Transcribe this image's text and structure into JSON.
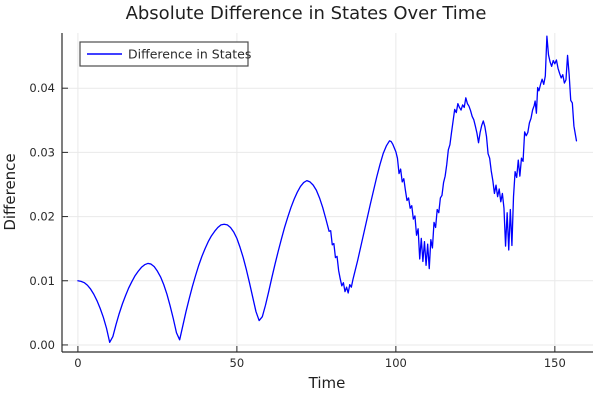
{
  "colors": {
    "line": "#0000ff",
    "axis": "#2a2a2a",
    "grid": "#e9e9e9",
    "title_text": "#1f1f1f",
    "tick_text": "#2a2a2a",
    "legend_border": "#4d4d4d",
    "legend_bg": "#ffffff",
    "background": "#ffffff"
  },
  "chart_data": {
    "type": "line",
    "title": "Absolute Difference in States Over Time",
    "xlabel": "Time",
    "ylabel": "Difference",
    "xlim": [
      -5,
      162
    ],
    "ylim": [
      -0.0011,
      0.0486
    ],
    "x_ticks": [
      0,
      50,
      100,
      150
    ],
    "x_tick_labels": [
      "0",
      "50",
      "100",
      "150"
    ],
    "y_ticks": [
      0.0,
      0.01,
      0.02,
      0.03,
      0.04
    ],
    "y_tick_labels": [
      "0.00",
      "0.01",
      "0.02",
      "0.03",
      "0.04"
    ],
    "grid": true,
    "legend": {
      "position": "top-left",
      "entries": [
        {
          "label": "Difference in States",
          "color": "#0000ff"
        }
      ]
    },
    "series": [
      {
        "name": "Difference in States",
        "color": "#0000ff",
        "points": [
          [
            0,
            0.01
          ],
          [
            1,
            0.0099
          ],
          [
            2,
            0.0097
          ],
          [
            3,
            0.0093
          ],
          [
            4,
            0.0087
          ],
          [
            5,
            0.0079
          ],
          [
            6,
            0.0069
          ],
          [
            7,
            0.0057
          ],
          [
            8,
            0.0043
          ],
          [
            9,
            0.0026
          ],
          [
            10,
            0.0004
          ],
          [
            11,
            0.0013
          ],
          [
            12,
            0.0032
          ],
          [
            13,
            0.0049
          ],
          [
            14,
            0.0064
          ],
          [
            15,
            0.0077
          ],
          [
            16,
            0.0089
          ],
          [
            17,
            0.0099
          ],
          [
            18,
            0.0108
          ],
          [
            19,
            0.0115
          ],
          [
            20,
            0.0121
          ],
          [
            21,
            0.0125
          ],
          [
            22,
            0.0127
          ],
          [
            23,
            0.0126
          ],
          [
            24,
            0.0122
          ],
          [
            25,
            0.0115
          ],
          [
            26,
            0.0106
          ],
          [
            27,
            0.0094
          ],
          [
            28,
            0.0079
          ],
          [
            29,
            0.0061
          ],
          [
            30,
            0.0041
          ],
          [
            31,
            0.0019
          ],
          [
            32,
            0.0008
          ],
          [
            33,
            0.003
          ],
          [
            34,
            0.0052
          ],
          [
            35,
            0.0072
          ],
          [
            36,
            0.0091
          ],
          [
            37,
            0.0108
          ],
          [
            38,
            0.0124
          ],
          [
            39,
            0.0138
          ],
          [
            40,
            0.015
          ],
          [
            41,
            0.0161
          ],
          [
            42,
            0.017
          ],
          [
            43,
            0.0177
          ],
          [
            44,
            0.0183
          ],
          [
            45,
            0.0187
          ],
          [
            46,
            0.0188
          ],
          [
            47,
            0.0187
          ],
          [
            48,
            0.0183
          ],
          [
            49,
            0.0176
          ],
          [
            50,
            0.0166
          ],
          [
            51,
            0.0152
          ],
          [
            52,
            0.0136
          ],
          [
            53,
            0.0117
          ],
          [
            54,
            0.0096
          ],
          [
            55,
            0.0074
          ],
          [
            56,
            0.0052
          ],
          [
            57,
            0.0038
          ],
          [
            58,
            0.0044
          ],
          [
            59,
            0.0062
          ],
          [
            60,
            0.0083
          ],
          [
            61,
            0.0105
          ],
          [
            62,
            0.0126
          ],
          [
            63,
            0.0146
          ],
          [
            64,
            0.0165
          ],
          [
            65,
            0.0183
          ],
          [
            66,
            0.0199
          ],
          [
            67,
            0.0214
          ],
          [
            68,
            0.0227
          ],
          [
            69,
            0.0238
          ],
          [
            70,
            0.0247
          ],
          [
            71,
            0.0253
          ],
          [
            72,
            0.0256
          ],
          [
            73,
            0.0254
          ],
          [
            74,
            0.0249
          ],
          [
            75,
            0.0241
          ],
          [
            76,
            0.0229
          ],
          [
            77,
            0.0214
          ],
          [
            78,
            0.0196
          ],
          [
            79,
            0.0177
          ],
          [
            79.5,
            0.0178
          ],
          [
            80,
            0.0156
          ],
          [
            80.5,
            0.0158
          ],
          [
            81,
            0.0136
          ],
          [
            81.5,
            0.0138
          ],
          [
            82,
            0.0116
          ],
          [
            82.5,
            0.0103
          ],
          [
            83,
            0.0092
          ],
          [
            83.5,
            0.0097
          ],
          [
            84,
            0.0083
          ],
          [
            84.5,
            0.009
          ],
          [
            85,
            0.0081
          ],
          [
            85.5,
            0.0094
          ],
          [
            86,
            0.009
          ],
          [
            86.5,
            0.0102
          ],
          [
            87,
            0.0112
          ],
          [
            88,
            0.0132
          ],
          [
            89,
            0.0154
          ],
          [
            90,
            0.0176
          ],
          [
            91,
            0.0198
          ],
          [
            92,
            0.022
          ],
          [
            93,
            0.0241
          ],
          [
            94,
            0.0262
          ],
          [
            95,
            0.0281
          ],
          [
            96,
            0.0298
          ],
          [
            97,
            0.031
          ],
          [
            98,
            0.0318
          ],
          [
            98.5,
            0.0317
          ],
          [
            99,
            0.0313
          ],
          [
            100,
            0.0301
          ],
          [
            100.5,
            0.0291
          ],
          [
            101,
            0.0267
          ],
          [
            101.5,
            0.0274
          ],
          [
            102,
            0.0254
          ],
          [
            102.5,
            0.0259
          ],
          [
            103,
            0.0241
          ],
          [
            103.5,
            0.0225
          ],
          [
            104,
            0.0229
          ],
          [
            104.5,
            0.0213
          ],
          [
            105,
            0.0217
          ],
          [
            105.5,
            0.0196
          ],
          [
            106,
            0.0201
          ],
          [
            106.5,
            0.0171
          ],
          [
            107,
            0.0181
          ],
          [
            107.5,
            0.0134
          ],
          [
            108,
            0.0166
          ],
          [
            108.5,
            0.013
          ],
          [
            109,
            0.0161
          ],
          [
            109.5,
            0.0124
          ],
          [
            110,
            0.0157
          ],
          [
            110.5,
            0.0119
          ],
          [
            111,
            0.0164
          ],
          [
            111.5,
            0.0151
          ],
          [
            112,
            0.0191
          ],
          [
            112.5,
            0.0183
          ],
          [
            113,
            0.0211
          ],
          [
            113.5,
            0.0206
          ],
          [
            114,
            0.0229
          ],
          [
            114.5,
            0.0233
          ],
          [
            115,
            0.0253
          ],
          [
            115.5,
            0.0263
          ],
          [
            116,
            0.0281
          ],
          [
            116.5,
            0.0304
          ],
          [
            117,
            0.0312
          ],
          [
            117.5,
            0.0331
          ],
          [
            118,
            0.0349
          ],
          [
            118.5,
            0.0367
          ],
          [
            119,
            0.0362
          ],
          [
            119.5,
            0.0376
          ],
          [
            120,
            0.037
          ],
          [
            120.5,
            0.0366
          ],
          [
            121,
            0.0374
          ],
          [
            121.5,
            0.037
          ],
          [
            122,
            0.0385
          ],
          [
            122.5,
            0.0376
          ],
          [
            123,
            0.0372
          ],
          [
            123.5,
            0.0365
          ],
          [
            124,
            0.0356
          ],
          [
            124.5,
            0.0351
          ],
          [
            125,
            0.0341
          ],
          [
            125.5,
            0.033
          ],
          [
            126,
            0.0315
          ],
          [
            126.5,
            0.0331
          ],
          [
            127,
            0.0342
          ],
          [
            127.5,
            0.0349
          ],
          [
            128,
            0.034
          ],
          [
            128.5,
            0.0325
          ],
          [
            129,
            0.0298
          ],
          [
            129.5,
            0.0291
          ],
          [
            130,
            0.0271
          ],
          [
            130.5,
            0.0256
          ],
          [
            131,
            0.0236
          ],
          [
            131.5,
            0.0249
          ],
          [
            132,
            0.0231
          ],
          [
            132.5,
            0.0243
          ],
          [
            133,
            0.0223
          ],
          [
            133.5,
            0.0236
          ],
          [
            134,
            0.0213
          ],
          [
            134.5,
            0.0154
          ],
          [
            135,
            0.0206
          ],
          [
            135.5,
            0.0148
          ],
          [
            136,
            0.0211
          ],
          [
            136.5,
            0.0155
          ],
          [
            137,
            0.0231
          ],
          [
            137.5,
            0.027
          ],
          [
            138,
            0.0261
          ],
          [
            138.5,
            0.0288
          ],
          [
            139,
            0.0263
          ],
          [
            139.5,
            0.0291
          ],
          [
            140,
            0.0286
          ],
          [
            140.5,
            0.0332
          ],
          [
            141,
            0.0326
          ],
          [
            141.5,
            0.0331
          ],
          [
            142,
            0.0346
          ],
          [
            142.5,
            0.0353
          ],
          [
            143,
            0.0366
          ],
          [
            143.5,
            0.0373
          ],
          [
            143.8,
            0.038
          ],
          [
            144.2,
            0.0361
          ],
          [
            144.6,
            0.0401
          ],
          [
            145,
            0.0396
          ],
          [
            145.5,
            0.0406
          ],
          [
            146,
            0.0414
          ],
          [
            146.5,
            0.0406
          ],
          [
            147,
            0.0419
          ],
          [
            147.5,
            0.0481
          ],
          [
            148,
            0.0452
          ],
          [
            148.5,
            0.0441
          ],
          [
            149,
            0.0434
          ],
          [
            149.5,
            0.0443
          ],
          [
            150,
            0.0438
          ],
          [
            150.5,
            0.0444
          ],
          [
            151,
            0.0431
          ],
          [
            151.5,
            0.0423
          ],
          [
            152,
            0.0416
          ],
          [
            152.5,
            0.0421
          ],
          [
            153,
            0.0408
          ],
          [
            153.5,
            0.0413
          ],
          [
            154,
            0.0451
          ],
          [
            154.5,
            0.0421
          ],
          [
            155,
            0.0381
          ],
          [
            155.5,
            0.0377
          ],
          [
            156,
            0.0341
          ],
          [
            156.8,
            0.0318
          ]
        ]
      }
    ]
  }
}
